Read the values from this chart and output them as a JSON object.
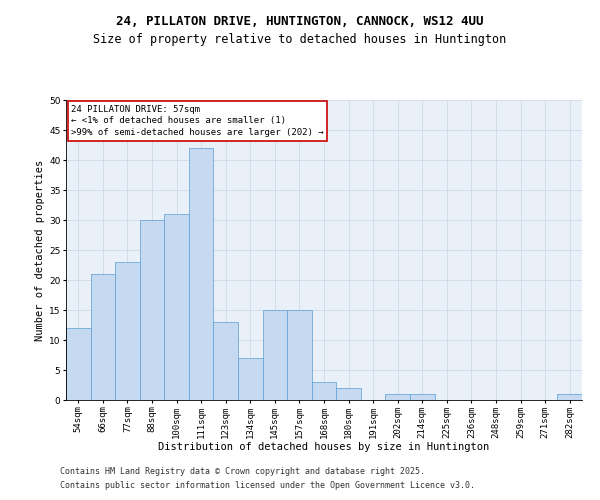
{
  "title1": "24, PILLATON DRIVE, HUNTINGTON, CANNOCK, WS12 4UU",
  "title2": "Size of property relative to detached houses in Huntington",
  "xlabel": "Distribution of detached houses by size in Huntington",
  "ylabel": "Number of detached properties",
  "categories": [
    "54sqm",
    "66sqm",
    "77sqm",
    "88sqm",
    "100sqm",
    "111sqm",
    "123sqm",
    "134sqm",
    "145sqm",
    "157sqm",
    "168sqm",
    "180sqm",
    "191sqm",
    "202sqm",
    "214sqm",
    "225sqm",
    "236sqm",
    "248sqm",
    "259sqm",
    "271sqm",
    "282sqm"
  ],
  "values": [
    12,
    21,
    23,
    30,
    31,
    42,
    13,
    7,
    15,
    15,
    3,
    2,
    0,
    1,
    1,
    0,
    0,
    0,
    0,
    0,
    1
  ],
  "bar_color": "#c5d9f0",
  "bar_edge_color": "#5a9fd4",
  "annotation_box_text": "24 PILLATON DRIVE: 57sqm\n← <1% of detached houses are smaller (1)\n>99% of semi-detached houses are larger (202) →",
  "annotation_box_color": "#ffffff",
  "annotation_box_edge_color": "#cc0000",
  "ylim": [
    0,
    50
  ],
  "yticks": [
    0,
    5,
    10,
    15,
    20,
    25,
    30,
    35,
    40,
    45,
    50
  ],
  "grid_color": "#d0d8e8",
  "background_color": "#eaf0f8",
  "footer1": "Contains HM Land Registry data © Crown copyright and database right 2025.",
  "footer2": "Contains public sector information licensed under the Open Government Licence v3.0.",
  "title_fontsize": 9,
  "subtitle_fontsize": 8.5,
  "axis_label_fontsize": 7.5,
  "tick_fontsize": 6.5,
  "annotation_fontsize": 6.5,
  "footer_fontsize": 6.0
}
